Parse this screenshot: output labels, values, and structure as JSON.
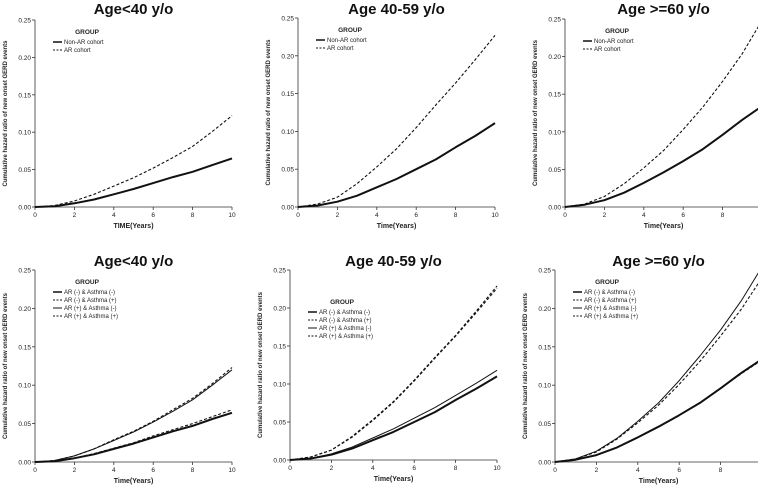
{
  "chart_data": [
    {
      "type": "line",
      "title": "Age<40 y/o",
      "xlabel": "TIME(Years)",
      "ylabel": "Cumulative hazard ratio of new onset GERD events",
      "xlim": [
        0,
        10
      ],
      "ylim": [
        0,
        0.25
      ],
      "xticks": [
        0,
        2,
        4,
        6,
        8,
        10
      ],
      "yticks": [
        0.0,
        0.05,
        0.1,
        0.15,
        0.2,
        0.25
      ],
      "legend_title": "GROUP",
      "legend_position": "top-left",
      "x": [
        0,
        1,
        2,
        3,
        4,
        5,
        6,
        7,
        8,
        9,
        10
      ],
      "series": [
        {
          "name": "Non-AR cohort",
          "style": "solid-thick",
          "values": [
            0,
            0.001,
            0.005,
            0.01,
            0.017,
            0.024,
            0.032,
            0.04,
            0.047,
            0.056,
            0.065
          ]
        },
        {
          "name": "AR cohort",
          "style": "dashed",
          "values": [
            0,
            0.002,
            0.008,
            0.017,
            0.028,
            0.039,
            0.052,
            0.066,
            0.081,
            0.101,
            0.122
          ]
        }
      ]
    },
    {
      "type": "line",
      "title": "Age 40-59 y/o",
      "xlabel": "Time(Years)",
      "ylabel": "Cumulative hazard ratio of new onset GERD events",
      "xlim": [
        0,
        10
      ],
      "ylim": [
        0,
        0.25
      ],
      "xticks": [
        0,
        2,
        4,
        6,
        8,
        10
      ],
      "yticks": [
        0.0,
        0.05,
        0.1,
        0.15,
        0.2,
        0.25
      ],
      "legend_title": "GROUP",
      "legend_position": "top-left",
      "x": [
        0,
        1,
        2,
        3,
        4,
        5,
        6,
        7,
        8,
        9,
        10
      ],
      "series": [
        {
          "name": "Non-AR cohort",
          "style": "solid-thick",
          "values": [
            0,
            0.002,
            0.007,
            0.015,
            0.026,
            0.037,
            0.05,
            0.063,
            0.079,
            0.094,
            0.111
          ]
        },
        {
          "name": "AR cohort",
          "style": "dashed",
          "values": [
            0,
            0.004,
            0.013,
            0.031,
            0.053,
            0.077,
            0.105,
            0.135,
            0.164,
            0.195,
            0.227
          ]
        }
      ]
    },
    {
      "type": "line",
      "title": "Age >=60 y/o",
      "xlabel": "Time(Years)",
      "ylabel": "Cumulative hazard ratio of new onset GERD events",
      "xlim": [
        0,
        10
      ],
      "ylim": [
        0,
        0.25
      ],
      "xticks": [
        0,
        2,
        4,
        6,
        8,
        10
      ],
      "yticks": [
        0.0,
        0.05,
        0.1,
        0.15,
        0.2,
        0.25
      ],
      "legend_title": "GROUP",
      "legend_position": "top-left",
      "x": [
        0,
        1,
        2,
        3,
        4,
        5,
        6,
        7,
        8,
        9,
        10
      ],
      "series": [
        {
          "name": "Non-AR cohort",
          "style": "solid-thick",
          "values": [
            0,
            0.003,
            0.009,
            0.019,
            0.032,
            0.046,
            0.061,
            0.077,
            0.096,
            0.116,
            0.134
          ]
        },
        {
          "name": "AR cohort",
          "style": "dashed",
          "values": [
            0,
            0.004,
            0.014,
            0.031,
            0.052,
            0.075,
            0.103,
            0.133,
            0.167,
            0.204,
            0.248
          ]
        }
      ]
    },
    {
      "type": "line",
      "title": "Age<40 y/o",
      "xlabel": "Time(Years)",
      "ylabel": "Cumulative hazard ratio of new onset GERD events",
      "xlim": [
        0,
        10
      ],
      "ylim": [
        0,
        0.25
      ],
      "xticks": [
        0,
        2,
        4,
        6,
        8,
        10
      ],
      "yticks": [
        0.0,
        0.05,
        0.1,
        0.15,
        0.2,
        0.25
      ],
      "legend_title": "GROUP",
      "legend_position": "top-left",
      "x": [
        0,
        1,
        2,
        3,
        4,
        5,
        6,
        7,
        8,
        9,
        10
      ],
      "series": [
        {
          "name": "AR (-) & Asthma (-)",
          "style": "solid-thick",
          "values": [
            0,
            0.001,
            0.005,
            0.01,
            0.017,
            0.024,
            0.032,
            0.04,
            0.047,
            0.056,
            0.064
          ]
        },
        {
          "name": "AR (-) & Asthma (+)",
          "style": "dashed",
          "values": [
            0,
            0.001,
            0.005,
            0.011,
            0.018,
            0.025,
            0.034,
            0.042,
            0.05,
            0.059,
            0.068
          ]
        },
        {
          "name": "AR (+) & Asthma (-)",
          "style": "solid-thin",
          "values": [
            0,
            0.002,
            0.008,
            0.017,
            0.028,
            0.039,
            0.052,
            0.066,
            0.081,
            0.1,
            0.12
          ]
        },
        {
          "name": "AR (+) & Asthma (+)",
          "style": "dashed",
          "values": [
            0,
            0.002,
            0.008,
            0.017,
            0.029,
            0.04,
            0.053,
            0.068,
            0.083,
            0.102,
            0.123
          ]
        }
      ]
    },
    {
      "type": "line",
      "title": "Age 40-59 y/o",
      "xlabel": "Time(Years)",
      "ylabel": "Cumulative hazard ratio of new onset GERD events",
      "xlim": [
        0,
        10
      ],
      "ylim": [
        0,
        0.25
      ],
      "xticks": [
        0,
        2,
        4,
        6,
        8,
        10
      ],
      "yticks": [
        0.0,
        0.05,
        0.1,
        0.15,
        0.2,
        0.25
      ],
      "legend_title": "GROUP",
      "legend_position": "top-left",
      "x": [
        0,
        1,
        2,
        3,
        4,
        5,
        6,
        7,
        8,
        9,
        10
      ],
      "series": [
        {
          "name": "AR (-) & Asthma (-)",
          "style": "solid-thick",
          "values": [
            0,
            0.002,
            0.007,
            0.015,
            0.026,
            0.037,
            0.05,
            0.063,
            0.079,
            0.094,
            0.11
          ]
        },
        {
          "name": "AR (-) & Asthma (+)",
          "style": "dashed",
          "values": [
            0,
            0.004,
            0.013,
            0.031,
            0.053,
            0.077,
            0.105,
            0.135,
            0.164,
            0.196,
            0.229
          ]
        },
        {
          "name": "AR (+) & Asthma (-)",
          "style": "solid-thin",
          "values": [
            0,
            0.002,
            0.008,
            0.017,
            0.029,
            0.041,
            0.055,
            0.069,
            0.085,
            0.101,
            0.118
          ]
        },
        {
          "name": "AR (+) & Asthma (+)",
          "style": "dashed",
          "values": [
            0,
            0.004,
            0.013,
            0.03,
            0.052,
            0.076,
            0.104,
            0.134,
            0.163,
            0.194,
            0.226
          ]
        }
      ]
    },
    {
      "type": "line",
      "title": "Age >=60 y/o",
      "xlabel": "Time(Years)",
      "ylabel": "Cumulative hazard ratio of new onset GERD events",
      "xlim": [
        0,
        10
      ],
      "ylim": [
        0,
        0.25
      ],
      "xticks": [
        0,
        2,
        4,
        6,
        8,
        10
      ],
      "yticks": [
        0.0,
        0.05,
        0.1,
        0.15,
        0.2,
        0.25
      ],
      "legend_title": "GROUP",
      "legend_position": "top-left",
      "x": [
        0,
        1,
        2,
        3,
        4,
        5,
        6,
        7,
        8,
        9,
        10
      ],
      "series": [
        {
          "name": "AR (-) & Asthma (-)",
          "style": "solid-thick",
          "values": [
            0,
            0.003,
            0.009,
            0.019,
            0.032,
            0.046,
            0.061,
            0.077,
            0.096,
            0.116,
            0.134
          ]
        },
        {
          "name": "AR (-) & Asthma (+)",
          "style": "dashed",
          "values": [
            0,
            0.003,
            0.009,
            0.019,
            0.032,
            0.046,
            0.061,
            0.077,
            0.096,
            0.115,
            0.133
          ]
        },
        {
          "name": "AR (+) & Asthma (-)",
          "style": "solid-thin",
          "values": [
            0,
            0.004,
            0.014,
            0.031,
            0.053,
            0.077,
            0.106,
            0.138,
            0.172,
            0.21,
            0.254
          ]
        },
        {
          "name": "AR (+) & Asthma (+)",
          "style": "dashed",
          "values": [
            0,
            0.004,
            0.013,
            0.03,
            0.051,
            0.074,
            0.101,
            0.131,
            0.164,
            0.199,
            0.24
          ]
        }
      ]
    }
  ]
}
